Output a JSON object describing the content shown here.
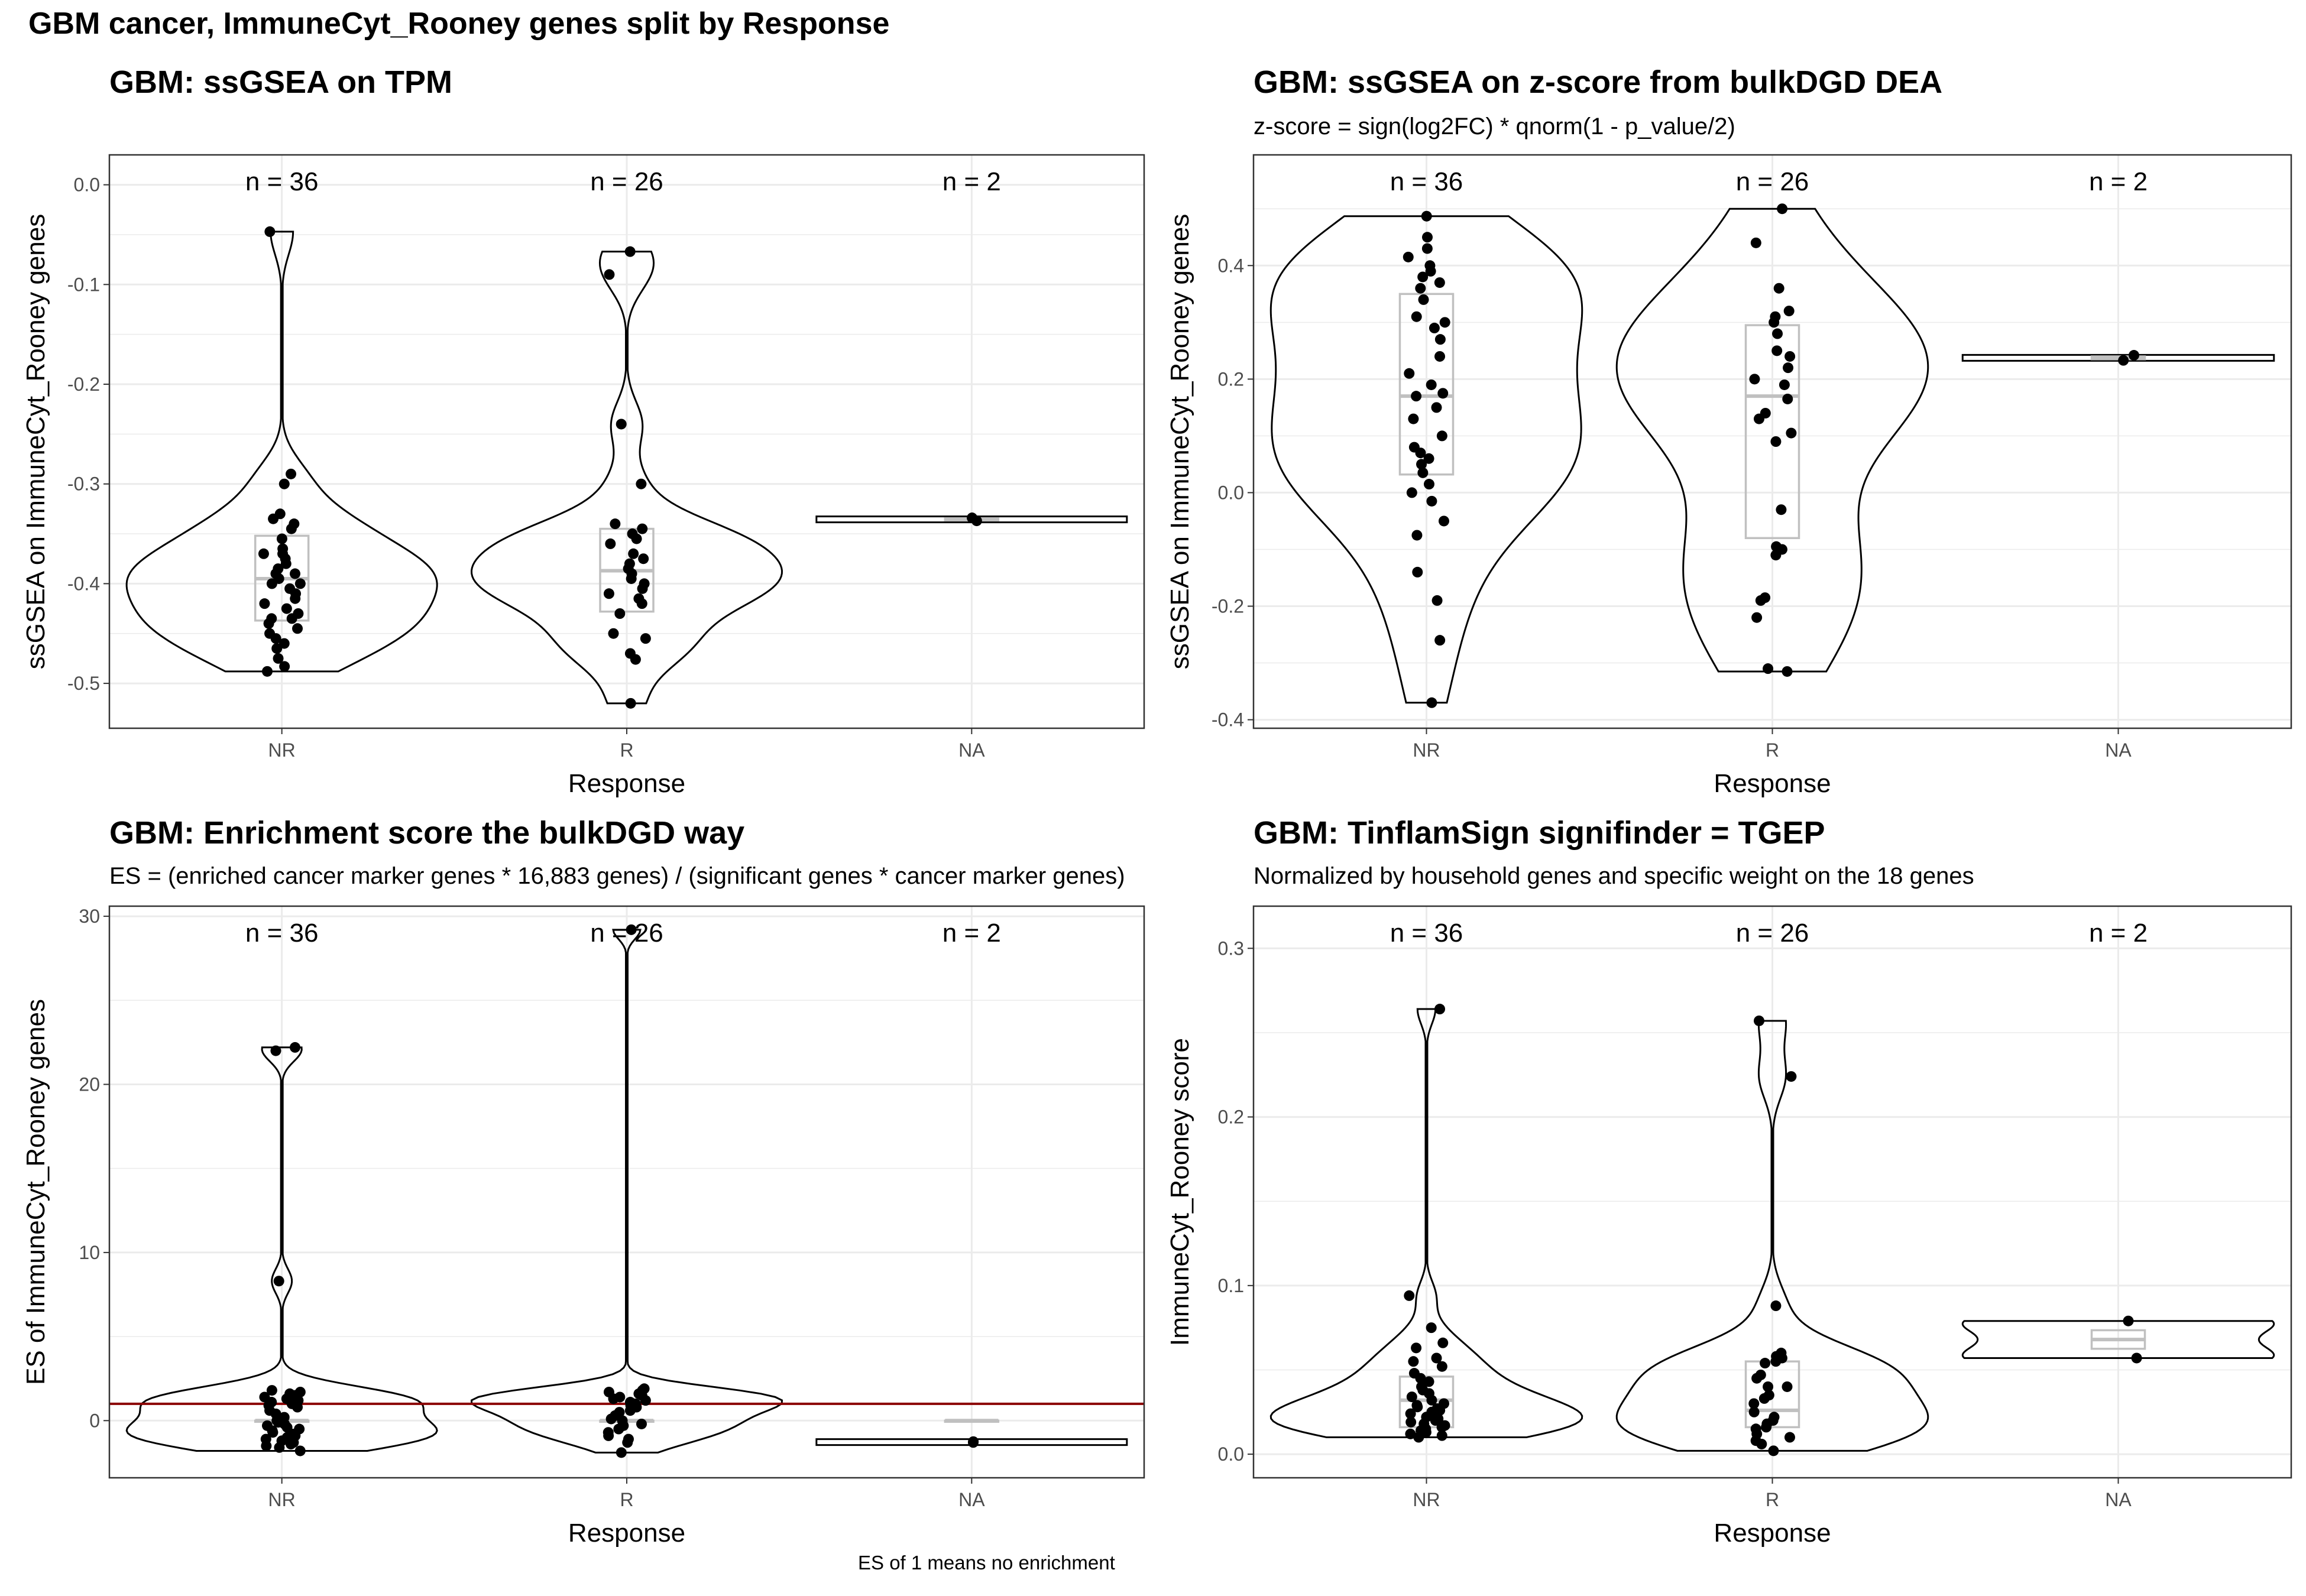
{
  "title": "GBM cancer, ImmuneCyt_Rooney genes split by Response",
  "caption": "ES of 1 means no enrichment",
  "colors": {
    "points": "#000000",
    "violin": "#000000",
    "box": "#c0c0c0",
    "reference_line": "#8b0000",
    "grid": "#ebebeb",
    "panel_border": "#333333"
  },
  "chart_data": [
    {
      "type": "violin",
      "title": "GBM: ssGSEA on TPM",
      "subtitle": "",
      "xlabel": "Response",
      "ylabel": "ssGSEA on ImmuneCyt_Rooney genes",
      "categories": [
        "NR",
        "R",
        "NA"
      ],
      "n_labels": [
        "n = 36",
        "n = 26",
        "n = 2"
      ],
      "ylim": [
        -0.545,
        0.03
      ],
      "yticks": [
        -0.5,
        -0.4,
        -0.3,
        -0.2,
        -0.1,
        0.0
      ],
      "ytick_labels": [
        "-0.5",
        "-0.4",
        "-0.3",
        "-0.2",
        "-0.1",
        "0.0"
      ],
      "grid": true,
      "series": [
        {
          "category": "NR",
          "values": [
            -0.047,
            -0.29,
            -0.3,
            -0.33,
            -0.335,
            -0.34,
            -0.345,
            -0.355,
            -0.365,
            -0.37,
            -0.37,
            -0.375,
            -0.38,
            -0.385,
            -0.39,
            -0.39,
            -0.395,
            -0.4,
            -0.4,
            -0.405,
            -0.41,
            -0.415,
            -0.42,
            -0.425,
            -0.43,
            -0.435,
            -0.435,
            -0.44,
            -0.445,
            -0.45,
            -0.455,
            -0.46,
            -0.465,
            -0.475,
            -0.483,
            -0.488
          ],
          "box": {
            "q1": -0.437,
            "median": -0.395,
            "q3": -0.352
          }
        },
        {
          "category": "R",
          "values": [
            -0.067,
            -0.09,
            -0.24,
            -0.3,
            -0.34,
            -0.345,
            -0.35,
            -0.355,
            -0.36,
            -0.37,
            -0.375,
            -0.38,
            -0.385,
            -0.39,
            -0.395,
            -0.4,
            -0.405,
            -0.41,
            -0.415,
            -0.42,
            -0.43,
            -0.45,
            -0.455,
            -0.47,
            -0.476,
            -0.52
          ],
          "box": {
            "q1": -0.428,
            "median": -0.387,
            "q3": -0.345
          }
        },
        {
          "category": "NA",
          "values": [
            -0.337,
            -0.334
          ],
          "box": {
            "q1": -0.3365,
            "median": -0.3355,
            "q3": -0.3345
          }
        }
      ]
    },
    {
      "type": "violin",
      "title": "GBM: ssGSEA on z-score from bulkDGD DEA",
      "subtitle": "z-score = sign(log2FC) * qnorm(1 - p_value/2)",
      "xlabel": "Response",
      "ylabel": "ssGSEA on ImmuneCyt_Rooney genes",
      "categories": [
        "NR",
        "R",
        "NA"
      ],
      "n_labels": [
        "n = 36",
        "n = 26",
        "n = 2"
      ],
      "ylim": [
        -0.415,
        0.595
      ],
      "yticks": [
        -0.4,
        -0.2,
        0.0,
        0.2,
        0.4
      ],
      "ytick_labels": [
        "-0.4",
        "-0.2",
        "0.0",
        "0.2",
        "0.4"
      ],
      "grid": true,
      "series": [
        {
          "category": "NR",
          "values": [
            0.487,
            0.45,
            0.43,
            0.415,
            0.4,
            0.39,
            0.38,
            0.37,
            0.36,
            0.34,
            0.31,
            0.3,
            0.29,
            0.27,
            0.24,
            0.21,
            0.19,
            0.175,
            0.17,
            0.15,
            0.13,
            0.1,
            0.08,
            0.07,
            0.06,
            0.05,
            0.035,
            0.015,
            0.0,
            -0.015,
            -0.05,
            -0.075,
            -0.14,
            -0.19,
            -0.26,
            -0.37
          ],
          "box": {
            "q1": 0.032,
            "median": 0.17,
            "q3": 0.35
          }
        },
        {
          "category": "R",
          "values": [
            0.5,
            0.44,
            0.36,
            0.32,
            0.31,
            0.3,
            0.28,
            0.25,
            0.24,
            0.22,
            0.2,
            0.19,
            0.165,
            0.14,
            0.13,
            0.105,
            0.09,
            -0.03,
            -0.095,
            -0.1,
            -0.11,
            -0.185,
            -0.19,
            -0.22,
            -0.31,
            -0.315
          ],
          "box": {
            "q1": -0.08,
            "median": 0.17,
            "q3": 0.295
          }
        },
        {
          "category": "NA",
          "values": [
            0.233,
            0.242
          ],
          "box": {
            "q1": 0.235,
            "median": 0.2375,
            "q3": 0.24
          }
        }
      ]
    },
    {
      "type": "violin",
      "title": "GBM: Enrichment score the bulkDGD way",
      "subtitle": "ES = (enriched cancer marker genes * 16,883 genes) / (significant genes * cancer marker genes)",
      "xlabel": "Response",
      "ylabel": "ES of ImmuneCyt_Rooney genes",
      "categories": [
        "NR",
        "R",
        "NA"
      ],
      "n_labels": [
        "n = 36",
        "n = 26",
        "n = 2"
      ],
      "ylim": [
        -3.4,
        30.6
      ],
      "yticks": [
        0,
        10,
        20,
        30
      ],
      "ytick_labels": [
        "0",
        "10",
        "20",
        "30"
      ],
      "grid": true,
      "reference_line": 1,
      "series": [
        {
          "category": "NR",
          "values": [
            22.2,
            22.0,
            8.3,
            1.8,
            1.7,
            1.6,
            1.5,
            1.5,
            1.4,
            1.3,
            1.2,
            1.1,
            1.0,
            0.9,
            0.8,
            0.6,
            0.4,
            0.2,
            0.0,
            -0.1,
            -0.2,
            -0.3,
            -0.4,
            -0.5,
            -0.6,
            -0.7,
            -0.8,
            -0.9,
            -1.0,
            -1.1,
            -1.2,
            -1.3,
            -1.4,
            -1.5,
            -1.6,
            -1.8
          ],
          "box": {
            "q1": 0.0,
            "median": 0.0,
            "q3": 0.0
          }
        },
        {
          "category": "R",
          "values": [
            29.2,
            1.9,
            1.8,
            1.7,
            1.6,
            1.5,
            1.4,
            1.3,
            1.2,
            1.1,
            1.0,
            0.9,
            0.8,
            0.6,
            0.5,
            0.3,
            0.1,
            0.0,
            -0.2,
            -0.3,
            -0.5,
            -0.7,
            -0.9,
            -1.1,
            -1.3,
            -1.9
          ],
          "box": {
            "q1": 0.0,
            "median": 0.0,
            "q3": 0.0
          }
        },
        {
          "category": "NA",
          "values": [
            -1.3,
            -1.25
          ],
          "box": {
            "q1": 0.0,
            "median": 0.0,
            "q3": 0.0
          }
        }
      ]
    },
    {
      "type": "violin",
      "title": "GBM: TinflamSign signifinder = TGEP",
      "subtitle": "Normalized by household genes and specific weight on the 18 genes",
      "xlabel": "Response",
      "ylabel": "ImmuneCyt_Rooney score",
      "categories": [
        "NR",
        "R",
        "NA"
      ],
      "n_labels": [
        "n = 36",
        "n = 26",
        "n = 2"
      ],
      "ylim": [
        -0.014,
        0.325
      ],
      "yticks": [
        0.0,
        0.1,
        0.2,
        0.3
      ],
      "ytick_labels": [
        "0.0",
        "0.1",
        "0.2",
        "0.3"
      ],
      "grid": true,
      "series": [
        {
          "category": "NR",
          "values": [
            0.264,
            0.094,
            0.075,
            0.066,
            0.063,
            0.057,
            0.055,
            0.052,
            0.048,
            0.045,
            0.043,
            0.04,
            0.038,
            0.036,
            0.034,
            0.032,
            0.03,
            0.029,
            0.028,
            0.027,
            0.026,
            0.025,
            0.024,
            0.022,
            0.021,
            0.02,
            0.019,
            0.018,
            0.017,
            0.016,
            0.015,
            0.014,
            0.013,
            0.012,
            0.011,
            0.01
          ],
          "box": {
            "q1": 0.016,
            "median": 0.032,
            "q3": 0.046
          }
        },
        {
          "category": "R",
          "values": [
            0.257,
            0.224,
            0.088,
            0.06,
            0.058,
            0.057,
            0.055,
            0.054,
            0.047,
            0.045,
            0.04,
            0.04,
            0.035,
            0.033,
            0.03,
            0.025,
            0.022,
            0.02,
            0.018,
            0.016,
            0.015,
            0.012,
            0.01,
            0.008,
            0.006,
            0.002
          ],
          "box": {
            "q1": 0.016,
            "median": 0.026,
            "q3": 0.055
          }
        },
        {
          "category": "NA",
          "values": [
            0.079,
            0.057
          ],
          "box": {
            "q1": 0.0625,
            "median": 0.068,
            "q3": 0.0735
          }
        }
      ]
    }
  ]
}
